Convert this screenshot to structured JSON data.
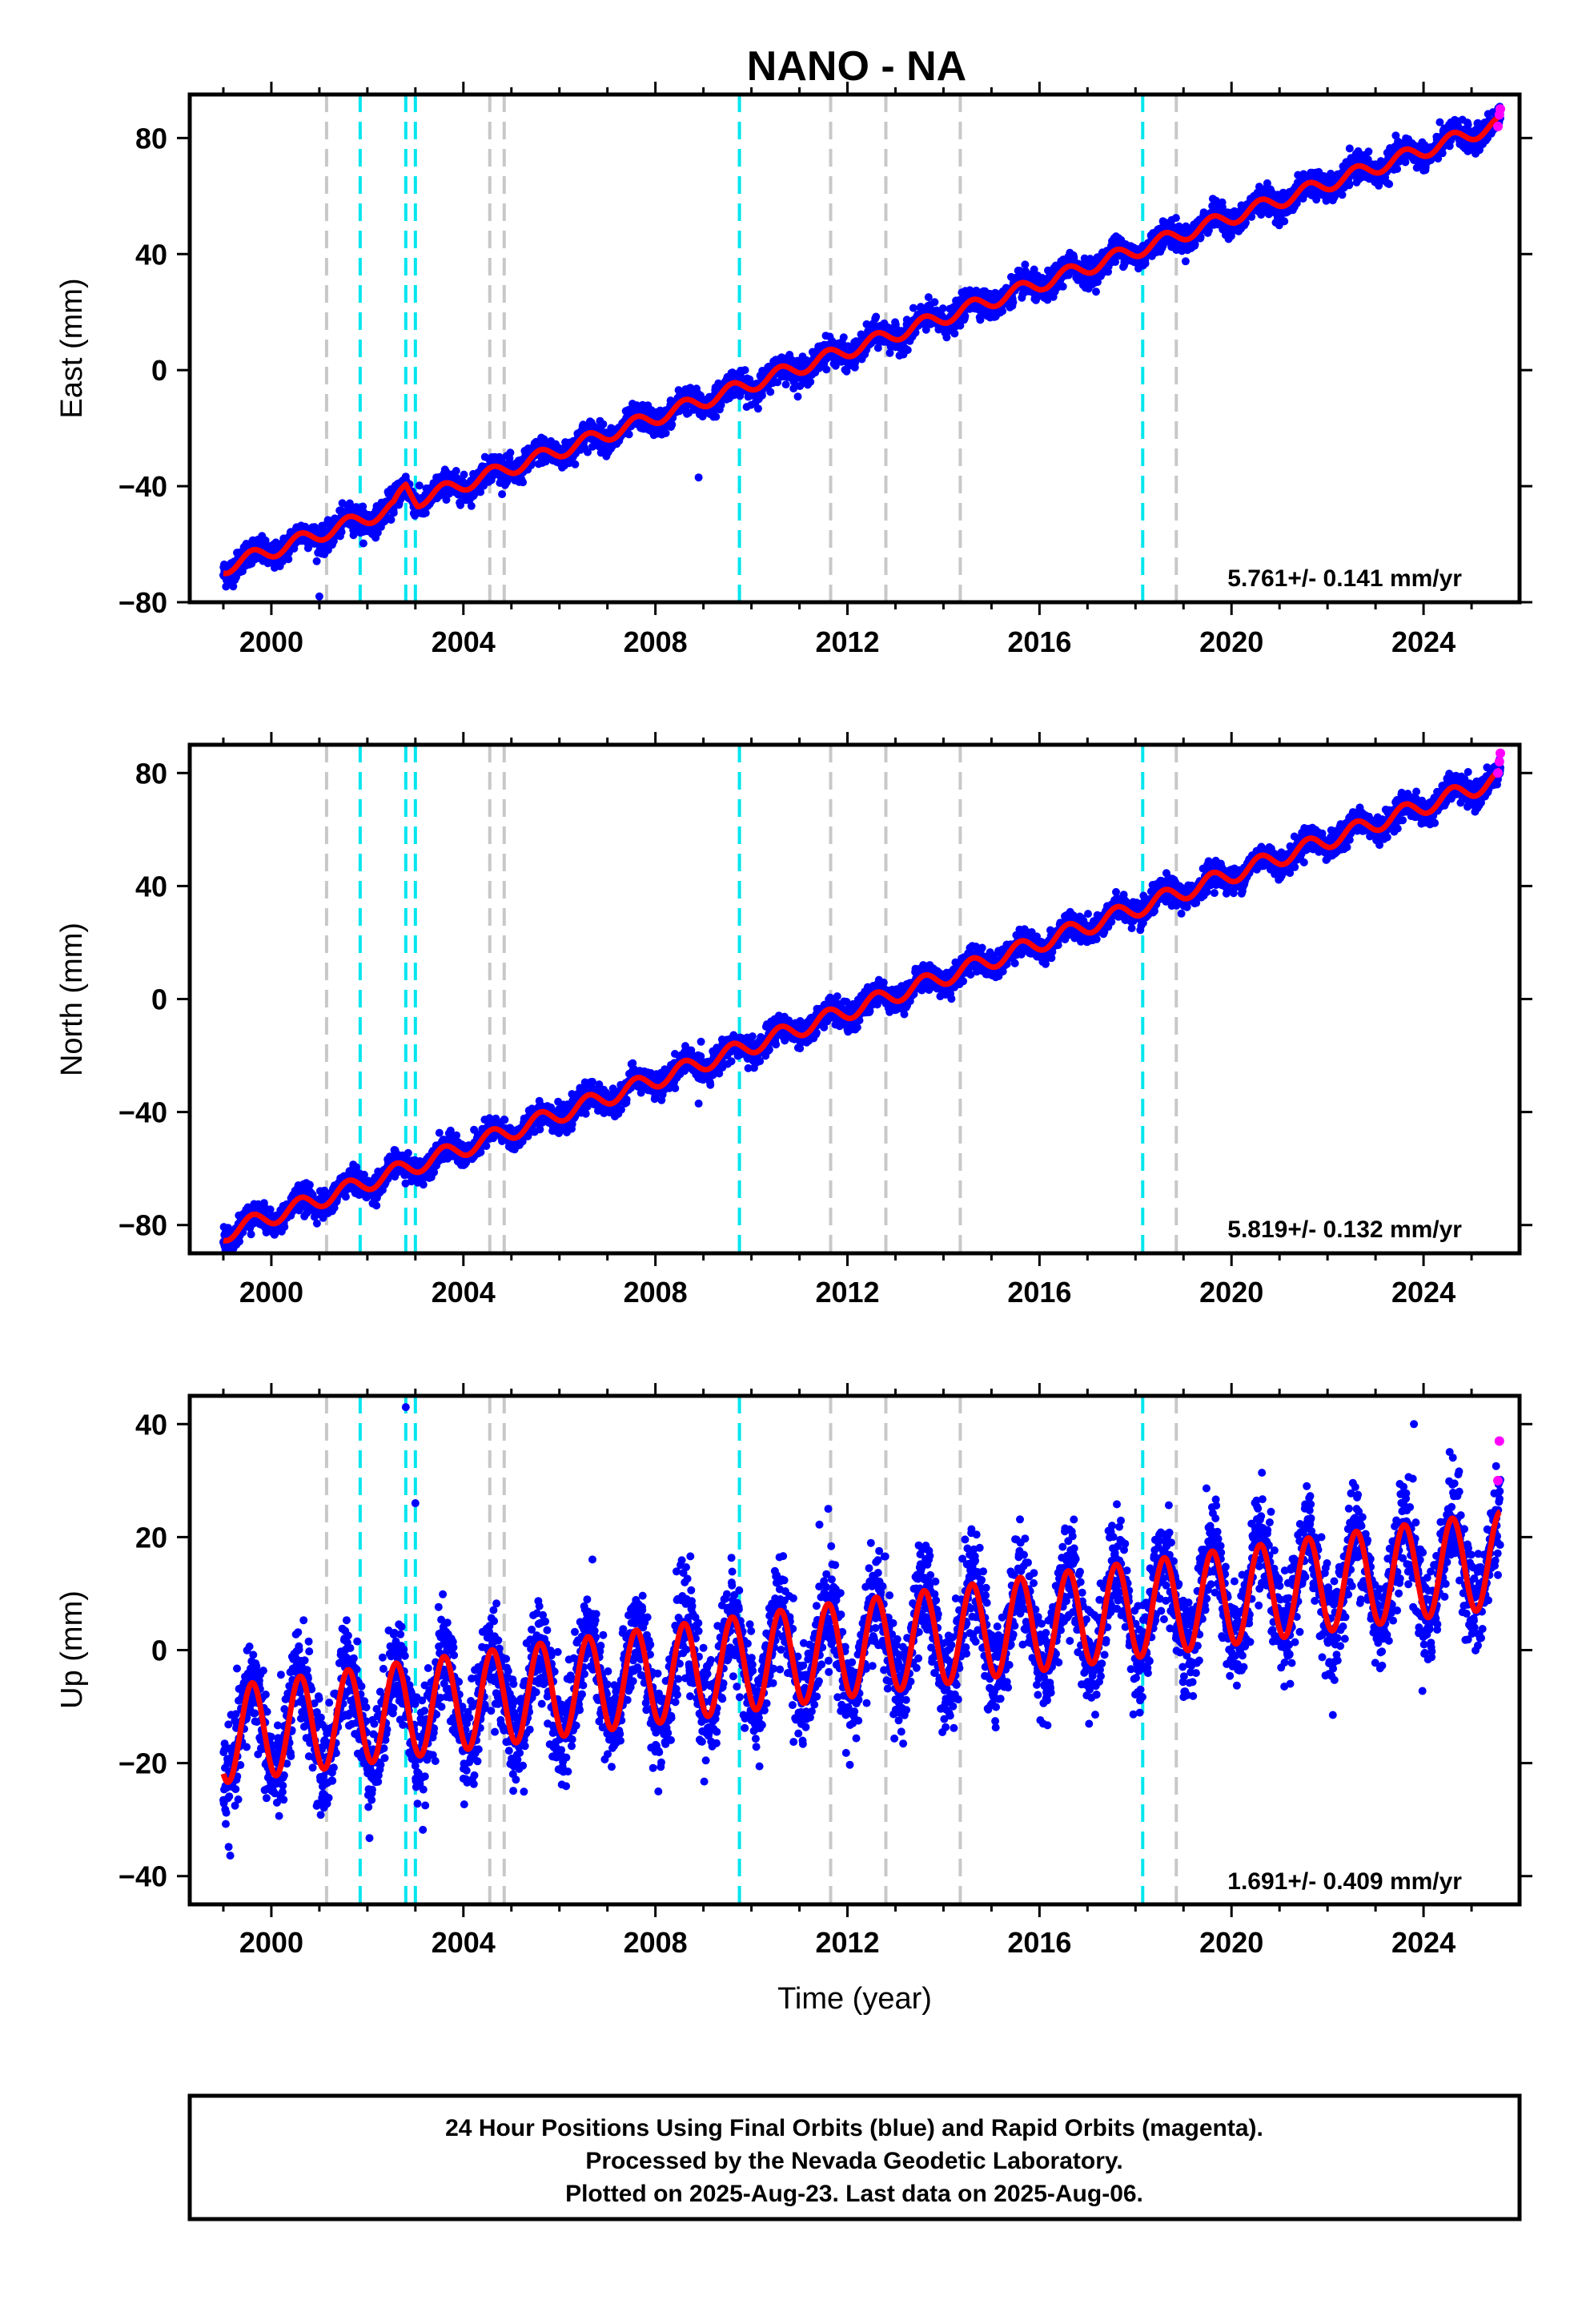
{
  "title": "NANO - NA",
  "caption": {
    "lines": [
      "24 Hour Positions Using Final Orbits (blue) and Rapid Orbits (magenta).",
      "Processed by the Nevada Geodetic Laboratory.",
      "Plotted on 2025-Aug-23. Last data on 2025-Aug-06."
    ]
  },
  "colors": {
    "final_orbits": "#0000ff",
    "rapid_orbits": "#ff00ff",
    "model": "#ff0000",
    "equipment_change": "#00e5ee",
    "other_offset": "#c8c8c8"
  },
  "chart_data": [
    {
      "type": "scatter",
      "ylabel": "East (mm)",
      "xlabel": "",
      "xlim": [
        1998.3,
        2026.0
      ],
      "ylim": [
        -80,
        95
      ],
      "xticks": [
        2000,
        2004,
        2008,
        2012,
        2016,
        2020,
        2024
      ],
      "yticks": [
        -80,
        -40,
        0,
        40,
        80
      ],
      "rate_label": "5.761+/- 0.141 mm/yr",
      "series": [
        {
          "role": "final",
          "trend": {
            "start": [
              1999.0,
              -68
            ],
            "end": [
              2025.6,
              85
            ]
          },
          "seasonal_amplitude": 2.5,
          "scatter": 2.2
        },
        {
          "role": "rapid",
          "x": [
            2025.55,
            2025.58,
            2025.6
          ],
          "y": [
            84,
            88,
            90
          ]
        },
        {
          "role": "model",
          "trend": {
            "start": [
              1999.0,
              -68
            ],
            "end": [
              2025.6,
              85
            ]
          },
          "seasonal_amplitude": 2.5
        }
      ],
      "outliers": [
        [
          2001.0,
          -78
        ],
        [
          2004.5,
          -37
        ],
        [
          2008.9,
          -37
        ]
      ],
      "steps": [
        [
          2002.8,
          6
        ]
      ]
    },
    {
      "type": "scatter",
      "ylabel": "North (mm)",
      "xlabel": "",
      "xlim": [
        1998.3,
        2026.0
      ],
      "ylim": [
        -90,
        90
      ],
      "xticks": [
        2000,
        2004,
        2008,
        2012,
        2016,
        2020,
        2024
      ],
      "yticks": [
        -80,
        -40,
        0,
        40,
        80
      ],
      "rate_label": "5.819+/- 0.132 mm/yr",
      "series": [
        {
          "role": "final",
          "trend": {
            "start": [
              1999.0,
              -83
            ],
            "end": [
              2025.6,
              78
            ]
          },
          "seasonal_amplitude": 3.0,
          "scatter": 2.2
        },
        {
          "role": "rapid",
          "x": [
            2025.55,
            2025.58,
            2025.6
          ],
          "y": [
            80,
            84,
            87
          ]
        },
        {
          "role": "model",
          "trend": {
            "start": [
              1999.0,
              -83
            ],
            "end": [
              2025.6,
              78
            ]
          },
          "seasonal_amplitude": 3.0
        }
      ],
      "outliers": [
        [
          2008.9,
          -37
        ]
      ],
      "steps": []
    },
    {
      "type": "scatter",
      "ylabel": "Up (mm)",
      "xlabel": "Time (year)",
      "xlim": [
        1998.3,
        2026.0
      ],
      "ylim": [
        -45,
        45
      ],
      "xticks": [
        2000,
        2004,
        2008,
        2012,
        2016,
        2020,
        2024
      ],
      "yticks": [
        -40,
        -20,
        0,
        20,
        40
      ],
      "rate_label": "1.691+/- 0.409 mm/yr",
      "series": [
        {
          "role": "final",
          "trend": {
            "start": [
              1999.0,
              -15
            ],
            "end": [
              2025.6,
              16
            ]
          },
          "seasonal_amplitude": 8.5,
          "scatter": 4.5
        },
        {
          "role": "rapid",
          "x": [
            2025.55,
            2025.58
          ],
          "y": [
            30,
            37
          ]
        },
        {
          "role": "model",
          "trend": {
            "start": [
              1999.0,
              -15
            ],
            "end": [
              2025.6,
              16
            ]
          },
          "seasonal_amplitude": 8.5
        }
      ],
      "outliers": [
        [
          2002.8,
          43
        ],
        [
          2003.0,
          26
        ],
        [
          2011.6,
          25
        ],
        [
          2023.8,
          40
        ]
      ],
      "steps": []
    }
  ],
  "offsets": {
    "equipment_change_years": [
      2001.85,
      2002.8,
      2003.0,
      2009.75,
      2018.15
    ],
    "other_years": [
      2001.15,
      2004.55,
      2004.85,
      2011.65,
      2012.8,
      2014.35,
      2018.85
    ]
  }
}
